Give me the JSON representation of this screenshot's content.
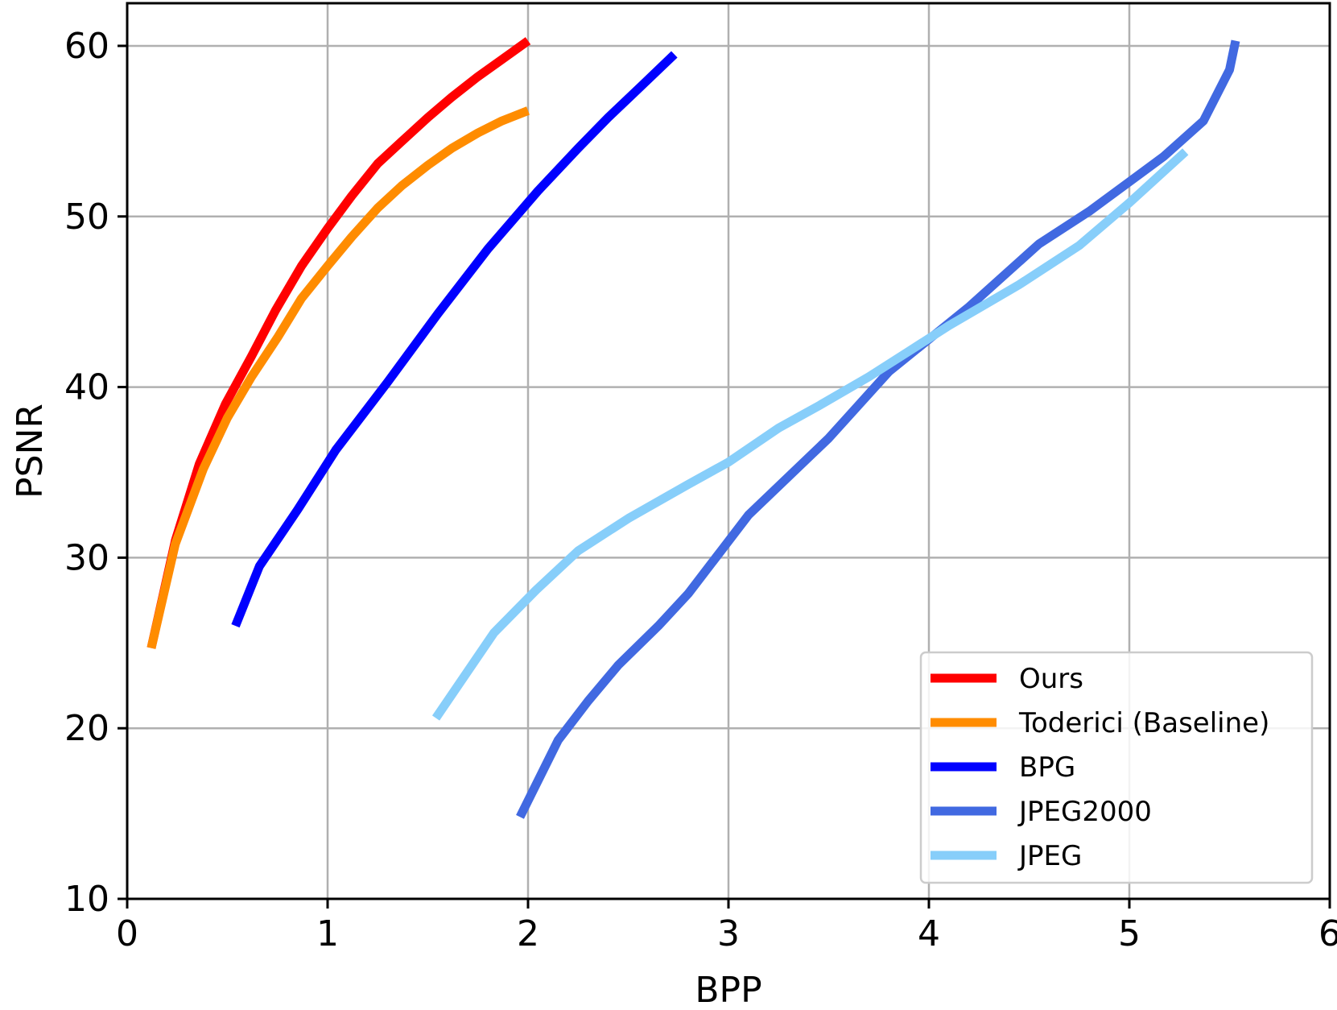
{
  "chart_data": {
    "type": "line",
    "xlabel": "BPP",
    "ylabel": "PSNR",
    "xlim": [
      0,
      6
    ],
    "ylim": [
      10,
      62.5
    ],
    "xticks": [
      0,
      1,
      2,
      3,
      4,
      5,
      6
    ],
    "yticks": [
      10,
      20,
      30,
      40,
      50,
      60
    ],
    "grid": true,
    "legend_position": "lower-right",
    "series": [
      {
        "name": "Ours",
        "color": "#ff0000",
        "points": [
          [
            0.12,
            24.7
          ],
          [
            0.24,
            31.0
          ],
          [
            0.36,
            35.5
          ],
          [
            0.49,
            39.0
          ],
          [
            0.62,
            41.8
          ],
          [
            0.74,
            44.5
          ],
          [
            0.87,
            47.1
          ],
          [
            1.0,
            49.3
          ],
          [
            1.12,
            51.2
          ],
          [
            1.25,
            53.1
          ],
          [
            1.37,
            54.4
          ],
          [
            1.5,
            55.8
          ],
          [
            1.62,
            57.0
          ],
          [
            1.75,
            58.2
          ],
          [
            1.87,
            59.2
          ],
          [
            2.0,
            60.3
          ]
        ]
      },
      {
        "name": "Toderici (Baseline)",
        "color": "#ff8c00",
        "points": [
          [
            0.12,
            24.7
          ],
          [
            0.24,
            30.8
          ],
          [
            0.38,
            35.2
          ],
          [
            0.5,
            38.2
          ],
          [
            0.62,
            40.6
          ],
          [
            0.75,
            42.9
          ],
          [
            0.87,
            45.2
          ],
          [
            1.0,
            47.1
          ],
          [
            1.12,
            48.8
          ],
          [
            1.25,
            50.5
          ],
          [
            1.37,
            51.8
          ],
          [
            1.5,
            53.0
          ],
          [
            1.62,
            54.0
          ],
          [
            1.75,
            54.9
          ],
          [
            1.87,
            55.6
          ],
          [
            2.0,
            56.2
          ]
        ]
      },
      {
        "name": "BPG",
        "color": "#0000ff",
        "points": [
          [
            0.54,
            26.0
          ],
          [
            0.66,
            29.5
          ],
          [
            0.85,
            32.8
          ],
          [
            1.04,
            36.3
          ],
          [
            1.3,
            40.3
          ],
          [
            1.55,
            44.3
          ],
          [
            1.8,
            48.1
          ],
          [
            2.05,
            51.5
          ],
          [
            2.25,
            54.0
          ],
          [
            2.4,
            55.8
          ],
          [
            2.57,
            57.7
          ],
          [
            2.73,
            59.5
          ]
        ]
      },
      {
        "name": "JPEG2000",
        "color": "#4169e1",
        "points": [
          [
            1.96,
            14.8
          ],
          [
            2.15,
            19.3
          ],
          [
            2.3,
            21.6
          ],
          [
            2.45,
            23.7
          ],
          [
            2.65,
            26.0
          ],
          [
            2.8,
            27.9
          ],
          [
            3.1,
            32.5
          ],
          [
            3.5,
            37.0
          ],
          [
            3.8,
            40.9
          ],
          [
            4.2,
            44.7
          ],
          [
            4.55,
            48.4
          ],
          [
            4.8,
            50.3
          ],
          [
            5.17,
            53.5
          ],
          [
            5.37,
            55.6
          ],
          [
            5.5,
            58.6
          ],
          [
            5.53,
            60.3
          ]
        ]
      },
      {
        "name": "JPEG",
        "color": "#87cefa",
        "points": [
          [
            1.54,
            20.6
          ],
          [
            1.83,
            25.6
          ],
          [
            2.04,
            28.1
          ],
          [
            2.25,
            30.4
          ],
          [
            2.5,
            32.3
          ],
          [
            2.8,
            34.3
          ],
          [
            3.0,
            35.6
          ],
          [
            3.25,
            37.6
          ],
          [
            3.45,
            38.9
          ],
          [
            3.7,
            40.6
          ],
          [
            3.9,
            42.1
          ],
          [
            4.1,
            43.6
          ],
          [
            4.45,
            46.0
          ],
          [
            4.75,
            48.3
          ],
          [
            5.0,
            50.8
          ],
          [
            5.28,
            53.8
          ]
        ]
      }
    ]
  }
}
